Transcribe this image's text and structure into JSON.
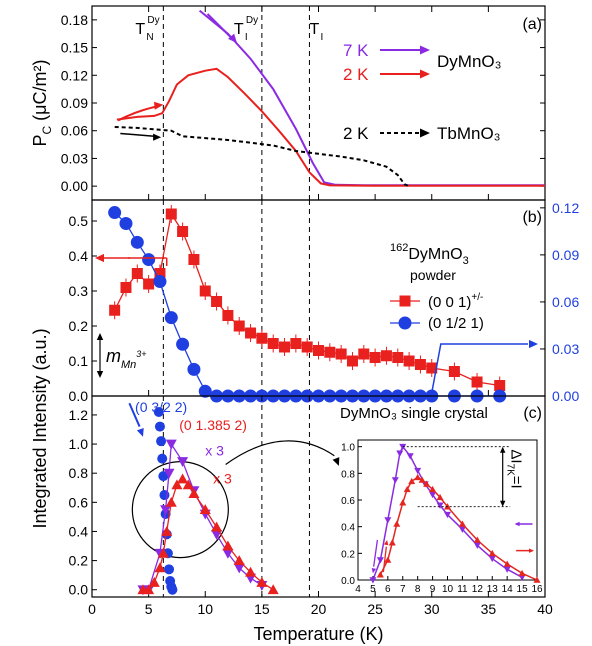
{
  "colors": {
    "red": "#e8201e",
    "purple": "#8a2be2",
    "blue": "#1f3fe0",
    "black": "#000000",
    "inset_red": "#e52620"
  },
  "chart_data": [
    {
      "panel": "a",
      "type": "line",
      "panel_label": "(a)",
      "ylabel_main": "P",
      "ylabel_sub": "C",
      "ylabel_unit": " (μC/m²)",
      "xlim": [
        0,
        40
      ],
      "ylim": [
        -0.015,
        0.195
      ],
      "y_ticks": [
        "0.00",
        "0.03",
        "0.06",
        "0.09",
        "0.12",
        "0.15",
        "0.18"
      ],
      "y_tick_values": [
        0,
        0.03,
        0.06,
        0.09,
        0.12,
        0.15,
        0.18
      ],
      "vlines": [
        {
          "x": 6.3,
          "main": "T",
          "sub": "N",
          "sup": "Dy"
        },
        {
          "x": 15,
          "main": "T",
          "sub": "I",
          "sup": "Dy"
        },
        {
          "x": 19.2,
          "main": "T",
          "sub": "I",
          "sup": ""
        }
      ],
      "legend": [
        {
          "label": "7 K",
          "color": "#8a2be2",
          "arrow": "solid",
          "compound": "DyMnO₃"
        },
        {
          "label": "2 K",
          "color": "#e8201e",
          "arrow": "solid",
          "compound": ""
        },
        {
          "label": "2 K",
          "color": "#000000",
          "arrow": "dashed",
          "compound": "TbMnO₃"
        }
      ],
      "series": [
        {
          "name": "7 K",
          "color": "#8a2be2",
          "style": "solid",
          "points": [
            [
              9.5,
              0.19
            ],
            [
              12,
              0.165
            ],
            [
              14,
              0.138
            ],
            [
              16,
              0.105
            ],
            [
              18,
              0.062
            ],
            [
              19.5,
              0.025
            ],
            [
              20.5,
              0.004
            ],
            [
              21.5,
              0.0015
            ],
            [
              24,
              0.001
            ],
            [
              30,
              0.001
            ],
            [
              40,
              0.001
            ]
          ]
        },
        {
          "name": "2 K",
          "color": "#e8201e",
          "style": "solid",
          "points": [
            [
              2.2,
              0.072
            ],
            [
              4,
              0.075
            ],
            [
              5.5,
              0.076
            ],
            [
              6.2,
              0.079
            ],
            [
              6.8,
              0.092
            ],
            [
              7.5,
              0.11
            ],
            [
              8.5,
              0.12
            ],
            [
              10,
              0.125
            ],
            [
              11,
              0.127
            ],
            [
              12,
              0.118
            ],
            [
              13.5,
              0.1
            ],
            [
              15,
              0.081
            ],
            [
              16.5,
              0.06
            ],
            [
              18,
              0.038
            ],
            [
              19.2,
              0.015
            ],
            [
              20.2,
              0.003
            ],
            [
              21,
              0.0008
            ],
            [
              25,
              0.0005
            ],
            [
              40,
              0.0005
            ]
          ]
        },
        {
          "name": "TbMnO3 2 K",
          "color": "#000000",
          "style": "dashed",
          "points": [
            [
              2,
              0.064
            ],
            [
              4,
              0.063
            ],
            [
              6,
              0.061
            ],
            [
              7,
              0.06
            ],
            [
              8,
              0.054
            ],
            [
              10,
              0.052
            ],
            [
              12,
              0.05
            ],
            [
              14,
              0.047
            ],
            [
              16,
              0.044
            ],
            [
              18,
              0.038
            ],
            [
              20,
              0.035
            ],
            [
              22,
              0.032
            ],
            [
              24,
              0.028
            ],
            [
              26,
              0.021
            ],
            [
              27,
              0.012
            ],
            [
              27.6,
              0.002
            ],
            [
              28,
              0
            ]
          ]
        }
      ]
    },
    {
      "panel": "b",
      "type": "scatter",
      "panel_label": "(b)",
      "xlim": [
        0,
        40
      ],
      "ylim_left": [
        0,
        0.56
      ],
      "ylim_right": [
        0,
        0.125
      ],
      "y_ticks_left": [
        "0.0",
        "0.1",
        "0.2",
        "0.3",
        "0.4",
        "0.5"
      ],
      "y_tick_values_left": [
        0,
        0.1,
        0.2,
        0.3,
        0.4,
        0.5
      ],
      "y_ticks_right": [
        "0.00",
        "0.03",
        "0.06",
        "0.09",
        "0.12"
      ],
      "y_tick_values_right": [
        0,
        0.03,
        0.06,
        0.09,
        0.12
      ],
      "title_sup": "162",
      "title_main": "DyMnO",
      "title_sub": "3",
      "subtitle": "powder",
      "moment_label": "m",
      "moment_sub": "Mn",
      "moment_sup": "3+",
      "series": [
        {
          "name": "(0 0 1)",
          "name_sup": "+/-",
          "axis": "left",
          "color": "#e8201e",
          "marker": "square",
          "x": [
            2,
            3,
            4,
            5,
            6,
            7,
            8,
            9,
            10,
            11,
            12,
            13,
            14,
            15,
            16,
            17,
            18,
            19,
            20,
            21,
            22,
            23,
            24,
            25,
            26,
            27,
            28,
            29,
            30,
            32,
            34,
            36
          ],
          "y": [
            0.245,
            0.31,
            0.35,
            0.32,
            0.35,
            0.52,
            0.47,
            0.39,
            0.3,
            0.27,
            0.23,
            0.2,
            0.18,
            0.165,
            0.15,
            0.14,
            0.15,
            0.14,
            0.13,
            0.125,
            0.12,
            0.1,
            0.12,
            0.11,
            0.115,
            0.11,
            0.1,
            0.09,
            0.08,
            0.07,
            0.04,
            0.03
          ]
        },
        {
          "name": "(0 1/2 1)",
          "name_sup": "",
          "axis": "right",
          "color": "#1f3fe0",
          "marker": "circle",
          "x": [
            2,
            3,
            4,
            5,
            6,
            7,
            8,
            9,
            10,
            11,
            12,
            13,
            14,
            15,
            16,
            17,
            18,
            19,
            20,
            21,
            22,
            23,
            24,
            25,
            26,
            27,
            28,
            29,
            30,
            32,
            34,
            36
          ],
          "y": [
            0.117,
            0.11,
            0.098,
            0.087,
            0.073,
            0.05,
            0.033,
            0.017,
            0.003,
            0,
            0,
            0,
            0,
            0,
            0,
            0,
            0,
            0,
            0,
            0,
            0,
            0,
            0,
            0,
            0,
            0,
            0,
            0,
            0,
            0,
            0,
            0
          ]
        }
      ]
    },
    {
      "panel": "c",
      "type": "scatter",
      "panel_label": "(c)",
      "xlabel": "Temperature (K)",
      "shared_ylabel": "Integrated Intensity (a.u.)",
      "xlim": [
        0,
        40
      ],
      "ylim": [
        -0.05,
        1.33
      ],
      "x_ticks": [
        "0",
        "5",
        "10",
        "15",
        "20",
        "25",
        "30",
        "35",
        "40"
      ],
      "x_tick_values": [
        0,
        5,
        10,
        15,
        20,
        25,
        30,
        35,
        40
      ],
      "y_ticks": [
        "0.0",
        "0.2",
        "0.4",
        "0.6",
        "0.8",
        "1.0",
        "1.2"
      ],
      "y_tick_values": [
        0,
        0.2,
        0.4,
        0.6,
        0.8,
        1.0,
        1.2
      ],
      "title": "DyMnO₃ single crystal",
      "annotations": {
        "blue": "(0 3/2 2)",
        "red": "(0 1.385 2)",
        "purple_x": "x 3",
        "red_x": "x 3"
      },
      "series": [
        {
          "name": "(0 3/2 2)",
          "color": "#1f3fe0",
          "marker": "circle",
          "x": [
            5.9,
            6.0,
            6.1,
            6.2,
            6.3,
            6.4,
            6.5,
            6.6,
            6.7,
            6.8,
            6.9,
            7.0,
            7.1
          ],
          "y": [
            1.22,
            1.12,
            1.02,
            0.9,
            0.78,
            0.65,
            0.52,
            0.38,
            0.25,
            0.14,
            0.06,
            0.02,
            0.0
          ]
        },
        {
          "name": "(0 1.385 2) x3 purple",
          "color": "#8a2be2",
          "marker": "triangle-down",
          "x": [
            4.5,
            5,
            6,
            6.5,
            6.8,
            7,
            8,
            9,
            10,
            11,
            12,
            13,
            14,
            15
          ],
          "y": [
            0.0,
            0.0,
            0.25,
            0.55,
            0.8,
            1.0,
            0.88,
            0.68,
            0.52,
            0.38,
            0.25,
            0.15,
            0.08,
            0.03
          ]
        },
        {
          "name": "(0 1.385 2) x3 red",
          "color": "#e8201e",
          "marker": "triangle-up",
          "x": [
            4.5,
            5,
            5.5,
            6,
            6.3,
            6.6,
            7,
            7.5,
            8,
            8.5,
            9,
            10,
            11,
            12,
            13,
            14,
            15,
            16
          ],
          "y": [
            0.0,
            0.0,
            0.05,
            0.15,
            0.25,
            0.4,
            0.6,
            0.72,
            0.76,
            0.72,
            0.66,
            0.55,
            0.43,
            0.3,
            0.2,
            0.12,
            0.05,
            0.0
          ]
        }
      ]
    },
    {
      "panel": "c-inset",
      "type": "line",
      "xlim": [
        4,
        16
      ],
      "ylim": [
        0,
        1.05
      ],
      "x_ticks": [
        "4",
        "5",
        "6",
        "7",
        "8",
        "9",
        "10",
        "11",
        "12",
        "13",
        "14",
        "15",
        "16"
      ],
      "x_tick_values": [
        4,
        5,
        6,
        7,
        8,
        9,
        10,
        11,
        12,
        13,
        14,
        15,
        16
      ],
      "y_ticks": [
        "0.0",
        "0.2",
        "0.4",
        "0.6",
        "0.8",
        "1.0"
      ],
      "y_tick_values": [
        0,
        0.2,
        0.4,
        0.6,
        0.8,
        1.0
      ],
      "delta_label": "ΔI",
      "delta_sub": "7K",
      "delta_suffix": "=I",
      "series": [
        {
          "name": "purple",
          "color": "#8a2be2",
          "marker": "triangle-down",
          "x": [
            5.0,
            5.5,
            6.0,
            6.5,
            6.8,
            7.0,
            7.5,
            8.0,
            8.5,
            9.0,
            9.5,
            10,
            11,
            12,
            13,
            14,
            15
          ],
          "y": [
            0.0,
            0.15,
            0.45,
            0.75,
            0.95,
            1.0,
            0.93,
            0.82,
            0.72,
            0.64,
            0.56,
            0.49,
            0.38,
            0.26,
            0.16,
            0.08,
            0.02
          ]
        },
        {
          "name": "red",
          "color": "#e52620",
          "marker": "triangle-up",
          "x": [
            5.5,
            6.0,
            6.3,
            6.6,
            7.0,
            7.3,
            7.6,
            8.0,
            8.3,
            8.6,
            9.0,
            9.5,
            10,
            11,
            12,
            13,
            14,
            15,
            16
          ],
          "y": [
            0.04,
            0.15,
            0.28,
            0.42,
            0.58,
            0.68,
            0.74,
            0.77,
            0.75,
            0.72,
            0.68,
            0.62,
            0.55,
            0.42,
            0.3,
            0.2,
            0.12,
            0.05,
            0.0
          ]
        }
      ]
    }
  ]
}
